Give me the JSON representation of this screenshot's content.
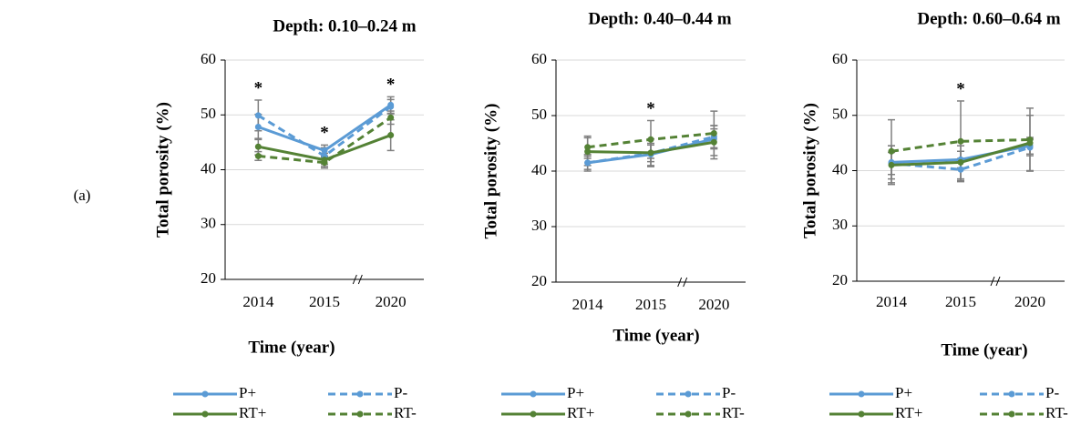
{
  "panel_label": "(a)",
  "chart_data": [
    {
      "type": "line",
      "title": "Depth: 0.10–0.24 m",
      "x_label": "Time (year)",
      "y_label": "Total porosity (%)",
      "categories": [
        "2014",
        "2015",
        "2020"
      ],
      "significance": [
        "*",
        "*",
        "*"
      ],
      "ylim": [
        20,
        60
      ],
      "yticks": [
        20,
        30,
        40,
        50,
        60
      ],
      "grid": true,
      "series": [
        {
          "name": "P+",
          "color": "#5b9bd5",
          "dashed": false,
          "values": [
            47.8,
            43.5,
            51.8
          ],
          "errors": [
            2.3,
            1.0,
            1.5
          ]
        },
        {
          "name": "P-",
          "color": "#5b9bd5",
          "dashed": true,
          "values": [
            49.9,
            42.5,
            51.5
          ],
          "errors": [
            2.8,
            1.5,
            1.3
          ]
        },
        {
          "name": "RT+",
          "color": "#548235",
          "dashed": false,
          "values": [
            44.2,
            41.8,
            46.3
          ],
          "errors": [
            1.5,
            1.2,
            2.8
          ]
        },
        {
          "name": "RT-",
          "color": "#548235",
          "dashed": true,
          "values": [
            42.5,
            41.3,
            49.5
          ],
          "errors": [
            0.8,
            1.0,
            1.2
          ]
        }
      ]
    },
    {
      "type": "line",
      "title": "Depth: 0.40–0.44 m",
      "x_label": "Time (year)",
      "y_label": "Total porosity (%)",
      "categories": [
        "2014",
        "2015",
        "2020"
      ],
      "significance": [
        null,
        "*",
        null
      ],
      "ylim": [
        20,
        60
      ],
      "yticks": [
        20,
        30,
        40,
        50,
        60
      ],
      "grid": true,
      "series": [
        {
          "name": "P+",
          "color": "#5b9bd5",
          "dashed": false,
          "values": [
            41.5,
            43.0,
            45.8
          ],
          "errors": [
            1.5,
            2.0,
            1.8
          ]
        },
        {
          "name": "P-",
          "color": "#5b9bd5",
          "dashed": true,
          "values": [
            41.5,
            43.2,
            46.2
          ],
          "errors": [
            1.2,
            1.5,
            2.0
          ]
        },
        {
          "name": "RT+",
          "color": "#548235",
          "dashed": false,
          "values": [
            43.5,
            43.3,
            45.2
          ],
          "errors": [
            2.5,
            2.5,
            3.0
          ]
        },
        {
          "name": "RT-",
          "color": "#548235",
          "dashed": true,
          "values": [
            44.3,
            45.7,
            46.8
          ],
          "errors": [
            2.0,
            3.4,
            4.0
          ]
        }
      ]
    },
    {
      "type": "line",
      "title": "Depth: 0.60–0.64 m",
      "x_label": "Time (year)",
      "y_label": "Total porosity (%)",
      "categories": [
        "2014",
        "2015",
        "2020"
      ],
      "significance": [
        null,
        "*",
        null
      ],
      "ylim": [
        20,
        60
      ],
      "yticks": [
        20,
        30,
        40,
        50,
        60
      ],
      "grid": true,
      "series": [
        {
          "name": "P+",
          "color": "#5b9bd5",
          "dashed": false,
          "values": [
            41.5,
            42.0,
            44.5
          ],
          "errors": [
            3.0,
            1.5,
            1.5
          ]
        },
        {
          "name": "P-",
          "color": "#5b9bd5",
          "dashed": true,
          "values": [
            41.3,
            40.2,
            44.2
          ],
          "errors": [
            2.0,
            2.0,
            1.5
          ]
        },
        {
          "name": "RT+",
          "color": "#548235",
          "dashed": false,
          "values": [
            41.0,
            41.5,
            45.0
          ],
          "errors": [
            3.5,
            3.0,
            5.0
          ]
        },
        {
          "name": "RT-",
          "color": "#548235",
          "dashed": true,
          "values": [
            43.5,
            45.3,
            45.6
          ],
          "errors": [
            5.7,
            7.3,
            5.7
          ]
        }
      ]
    }
  ]
}
